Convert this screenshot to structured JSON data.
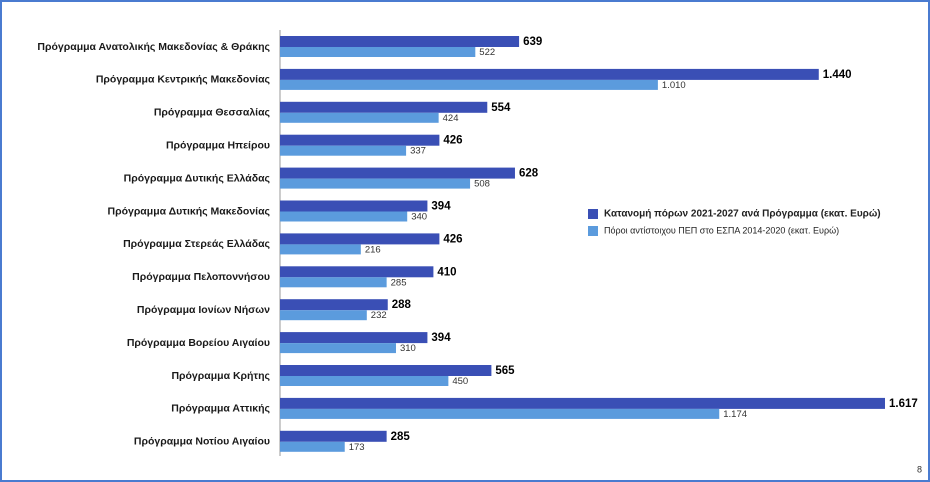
{
  "chart_data": {
    "type": "bar",
    "orientation": "horizontal",
    "categories": [
      "Πρόγραμμα Ανατολικής Μακεδονίας & Θράκης",
      "Πρόγραμμα Κεντρικής Μακεδονίας",
      "Πρόγραμμα Θεσσαλίας",
      "Πρόγραμμα Ηπείρου",
      "Πρόγραμμα Δυτικής Ελλάδας",
      "Πρόγραμμα Δυτικής Μακεδονίας",
      "Πρόγραμμα Στερεάς Ελλάδας",
      "Πρόγραμμα Πελοποννήσου",
      "Πρόγραμμα Ιονίων Νήσων",
      "Πρόγραμμα Βορείου Αιγαίου",
      "Πρόγραμμα Κρήτης",
      "Πρόγραμμα Αττικής",
      "Πρόγραμμα Νοτίου Αιγαίου"
    ],
    "series": [
      {
        "name": "Κατανομή πόρων 2021-2027 ανά Πρόγραμμα (εκατ. Ευρώ)",
        "color": "#3a4fb5",
        "values": [
          639,
          1440,
          554,
          426,
          628,
          394,
          426,
          410,
          288,
          394,
          565,
          1617,
          285
        ],
        "value_labels": [
          "639",
          "1.440",
          "554",
          "426",
          "628",
          "394",
          "426",
          "410",
          "288",
          "394",
          "565",
          "1.617",
          "285"
        ]
      },
      {
        "name": "Πόροι αντίστοιχου ΠΕΠ στο ΕΣΠΑ 2014-2020 (εκατ. Ευρώ)",
        "color": "#5b9bdd",
        "values": [
          522,
          1010,
          424,
          337,
          508,
          340,
          216,
          285,
          232,
          310,
          450,
          1174,
          173
        ],
        "value_labels": [
          "522",
          "1.010",
          "424",
          "337",
          "508",
          "340",
          "216",
          "285",
          "232",
          "310",
          "450",
          "1.174",
          "173"
        ]
      }
    ],
    "legend": "right"
  },
  "page_number": "8"
}
